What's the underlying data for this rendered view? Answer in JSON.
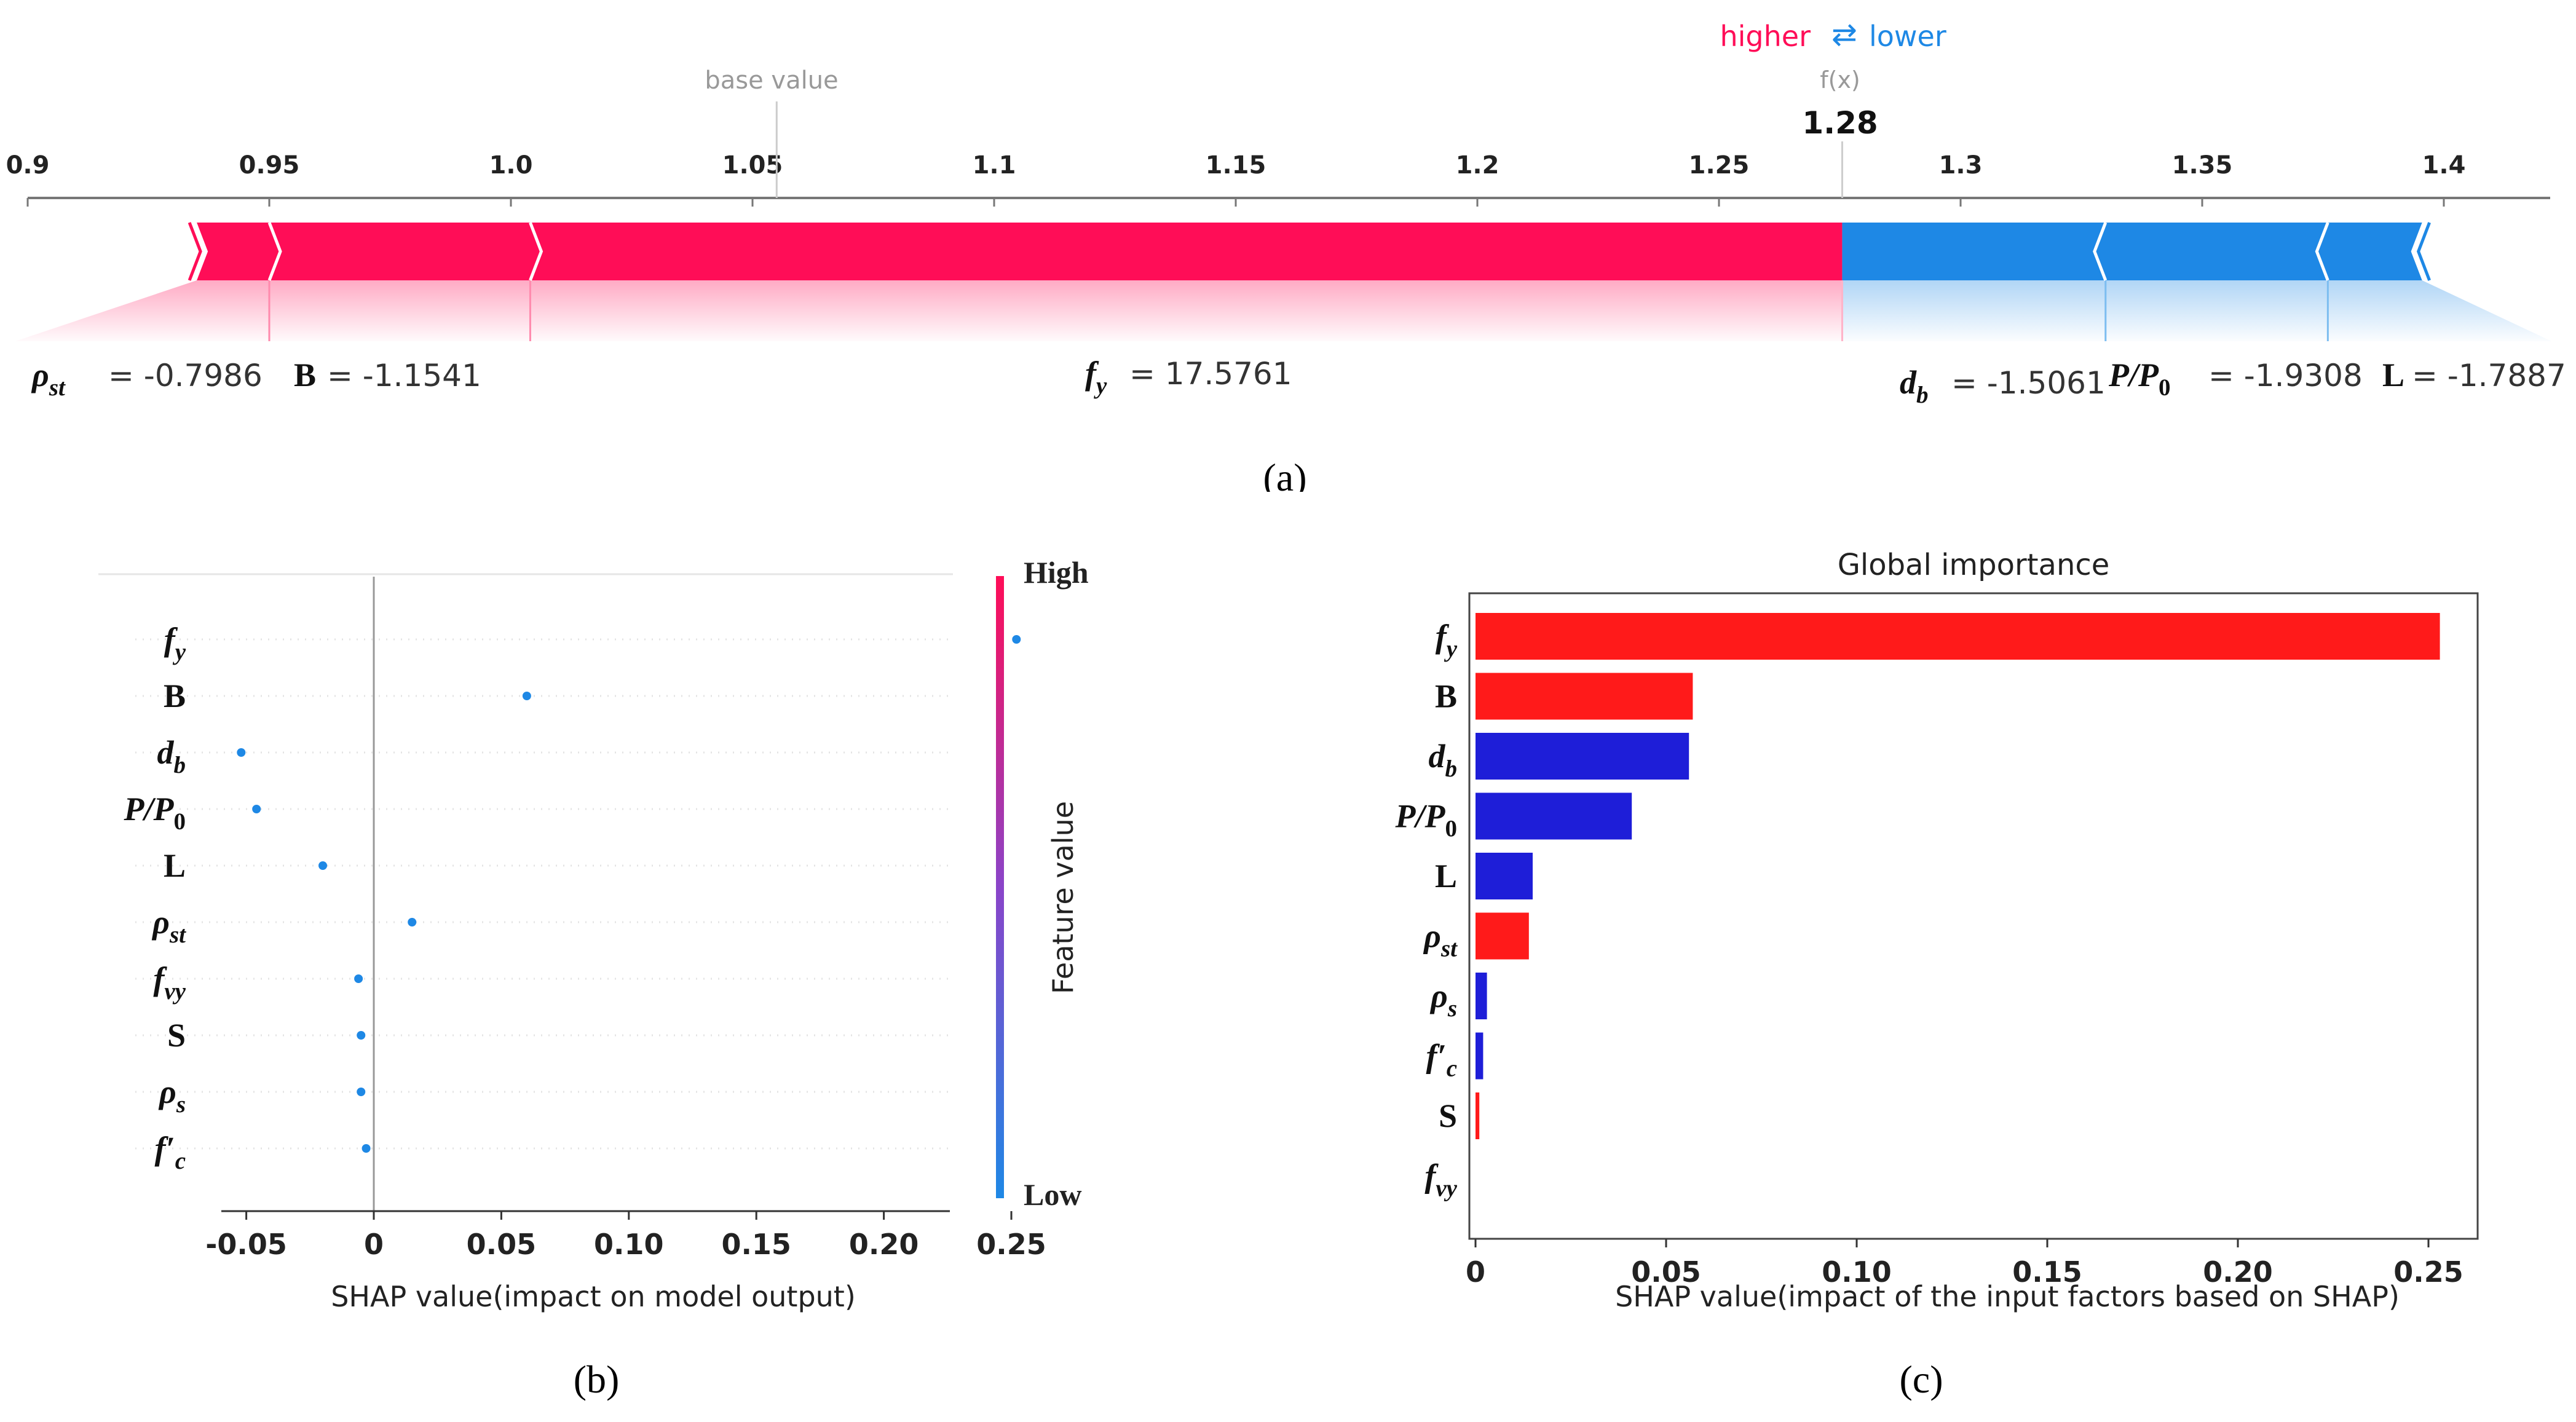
{
  "chart_data": [
    {
      "type": "force",
      "panel_label": "(a)",
      "header": {
        "higher_label": "higher",
        "arrows_glyph": "⇄",
        "lower_label": "lower",
        "fx_label": "f(x)",
        "fx_value": "1.28",
        "base_value_label": "base value"
      },
      "base_value": 1.055,
      "output_value": 1.2755,
      "xlim": [
        0.9,
        1.42
      ],
      "ticks": [
        0.9,
        0.95,
        1.0,
        1.05,
        1.1,
        1.15,
        1.2,
        1.25,
        1.3,
        1.35,
        1.4
      ],
      "tick_labels": [
        "0.9",
        "0.95",
        "1.0",
        "1.05",
        "1.1",
        "1.15",
        "1.2",
        "1.25",
        "1.3",
        "1.35",
        "1.4"
      ],
      "positive_boundaries": [
        0.935,
        0.95,
        1.004,
        1.2755
      ],
      "negative_boundaries": [
        1.2755,
        1.33,
        1.376,
        1.3955
      ],
      "features": [
        {
          "name_tex": "ρ_st",
          "value": "-0.7986",
          "direction": "positive"
        },
        {
          "name_tex": "B",
          "value": "-1.1541",
          "direction": "positive"
        },
        {
          "name_tex": "f_y",
          "value": "17.5761",
          "direction": "positive"
        },
        {
          "name_tex": "d_b",
          "value": "-1.5061",
          "direction": "negative"
        },
        {
          "name_tex": "P/P_0",
          "value": "-1.9308",
          "direction": "negative"
        },
        {
          "name_tex": "L",
          "value": "-1.7887",
          "direction": "negative"
        }
      ],
      "colors": {
        "positive": "#ff0d57",
        "negative": "#1e88e5",
        "higher_text": "#ff0d57",
        "lower_text": "#1e88e5"
      }
    },
    {
      "type": "scatter",
      "panel_label": "(b)",
      "xlabel": "SHAP value(impact on model output)",
      "colorbar": {
        "high_label": "High",
        "low_label": "Low",
        "title": "Feature value"
      },
      "xlim": [
        -0.068,
        0.268
      ],
      "ticks": [
        -0.05,
        0,
        0.05,
        0.1,
        0.15,
        0.2,
        0.25
      ],
      "tick_labels": [
        "-0.05",
        "0",
        "0.05",
        "0.10",
        "0.15",
        "0.20",
        "0.25"
      ],
      "features": [
        "f_y",
        "B",
        "d_b",
        "P/P_0",
        "L",
        "ρ_st",
        "f_vy",
        "S",
        "ρ_s",
        "f'_c"
      ],
      "values": [
        0.252,
        0.06,
        -0.052,
        -0.046,
        -0.02,
        0.015,
        -0.006,
        -0.005,
        -0.005,
        -0.003
      ],
      "point_color": "#1e88e5"
    },
    {
      "type": "bar",
      "panel_label": "(c)",
      "title": "Global importance",
      "xlabel": "SHAP value(impact of the input factors based on SHAP)",
      "xlim": [
        -0.002,
        0.266
      ],
      "ticks": [
        0,
        0.05,
        0.1,
        0.15,
        0.2,
        0.25
      ],
      "tick_labels": [
        "0",
        "0.05",
        "0.10",
        "0.15",
        "0.20",
        "0.25"
      ],
      "categories": [
        "f_y",
        "B",
        "d_b",
        "P/P_0",
        "L",
        "ρ_st",
        "ρ_s",
        "f'_c",
        "S",
        "f_vy"
      ],
      "values": [
        0.253,
        0.057,
        0.056,
        0.041,
        0.015,
        0.014,
        0.003,
        0.002,
        0.001,
        0.0
      ],
      "bar_colors": [
        "#ff1a1a",
        "#ff1a1a",
        "#1e1ed8",
        "#1e1ed8",
        "#1e1ed8",
        "#ff1a1a",
        "#1e1ed8",
        "#1e1ed8",
        "#ff1a1a",
        "#1e1ed8"
      ]
    }
  ]
}
